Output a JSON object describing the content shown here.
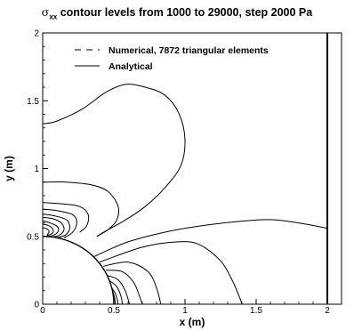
{
  "chart_data": {
    "type": "line",
    "title": {
      "symbol": "σ",
      "subscript": "xx",
      "text": " contour levels from 1000 to 29000, step 2000 Pa"
    },
    "xlabel": "x (m)",
    "ylabel": "y (m)",
    "xlim": [
      0,
      2.1
    ],
    "ylim": [
      0,
      2
    ],
    "x_ticks": [
      {
        "value": 0,
        "label": "0"
      },
      {
        "value": 0.5,
        "label": "0.5"
      },
      {
        "value": 1,
        "label": "1"
      },
      {
        "value": 1.5,
        "label": "1.5"
      },
      {
        "value": 2,
        "label": "2"
      }
    ],
    "y_ticks": [
      {
        "value": 0,
        "label": "0"
      },
      {
        "value": 0.5,
        "label": "0.5"
      },
      {
        "value": 1,
        "label": "1"
      },
      {
        "value": 1.5,
        "label": "1.5"
      },
      {
        "value": 2,
        "label": "2"
      }
    ],
    "grid": false,
    "legend": {
      "position": "top-left",
      "entries": [
        {
          "label": "Numerical, 7872 triangular elements",
          "style": "dashed"
        },
        {
          "label": "Analytical",
          "style": "solid"
        }
      ]
    },
    "series": [
      {
        "points": [
          [
            0,
            1.33
          ],
          [
            0.1,
            1.35
          ],
          [
            0.28,
            1.44
          ],
          [
            0.44,
            1.56
          ],
          [
            0.58,
            1.62
          ],
          [
            0.72,
            1.6
          ],
          [
            0.86,
            1.54
          ],
          [
            0.96,
            1.4
          ],
          [
            1.0,
            1.21
          ],
          [
            0.97,
            1.02
          ],
          [
            0.86,
            0.86
          ],
          [
            0.72,
            0.72
          ],
          [
            0.58,
            0.62
          ],
          [
            0.46,
            0.55
          ],
          [
            0.38,
            0.5
          ]
        ]
      },
      {
        "points": [
          [
            0,
            0.9
          ],
          [
            0.16,
            0.9
          ],
          [
            0.34,
            0.88
          ],
          [
            0.46,
            0.83
          ],
          [
            0.53,
            0.72
          ],
          [
            0.52,
            0.62
          ],
          [
            0.46,
            0.55
          ],
          [
            0.38,
            0.5
          ]
        ]
      },
      {
        "points": [
          [
            0,
            0.75
          ],
          [
            0.14,
            0.74
          ],
          [
            0.26,
            0.72
          ],
          [
            0.32,
            0.66
          ],
          [
            0.31,
            0.58
          ],
          [
            0.26,
            0.53
          ]
        ]
      },
      {
        "points": [
          [
            0,
            0.7
          ],
          [
            0.1,
            0.69
          ],
          [
            0.21,
            0.66
          ],
          [
            0.24,
            0.6
          ],
          [
            0.21,
            0.53
          ],
          [
            0.15,
            0.49
          ]
        ]
      },
      {
        "points": [
          [
            0,
            0.665
          ],
          [
            0.09,
            0.65
          ],
          [
            0.17,
            0.62
          ],
          [
            0.19,
            0.56
          ],
          [
            0.16,
            0.51
          ],
          [
            0.1,
            0.49
          ]
        ]
      },
      {
        "points": [
          [
            0,
            0.64
          ],
          [
            0.07,
            0.63
          ],
          [
            0.13,
            0.6
          ],
          [
            0.15,
            0.55
          ],
          [
            0.12,
            0.51
          ],
          [
            0.07,
            0.495
          ]
        ]
      },
      {
        "points": [
          [
            0,
            0.615
          ],
          [
            0.05,
            0.6
          ],
          [
            0.1,
            0.575
          ],
          [
            0.11,
            0.54
          ],
          [
            0.08,
            0.51
          ],
          [
            0.04,
            0.5
          ]
        ]
      },
      {
        "points": [
          [
            0,
            0.59
          ],
          [
            0.04,
            0.58
          ],
          [
            0.07,
            0.555
          ],
          [
            0.07,
            0.525
          ],
          [
            0.03,
            0.505
          ]
        ]
      },
      {
        "points": [
          [
            0,
            0.565
          ],
          [
            0.03,
            0.555
          ],
          [
            0.045,
            0.535
          ],
          [
            0.03,
            0.51
          ]
        ]
      },
      {
        "points": [
          [
            0.36,
            0.35
          ],
          [
            0.6,
            0.46
          ],
          [
            0.9,
            0.54
          ],
          [
            1.2,
            0.59
          ],
          [
            1.5,
            0.62
          ],
          [
            1.65,
            0.62
          ],
          [
            1.85,
            0.59
          ],
          [
            2.0,
            0.56
          ]
        ]
      },
      {
        "points": [
          [
            0.4,
            0.31
          ],
          [
            0.7,
            0.42
          ],
          [
            0.95,
            0.46
          ],
          [
            1.1,
            0.44
          ],
          [
            1.25,
            0.32
          ],
          [
            1.33,
            0.18
          ],
          [
            1.38,
            0.06
          ],
          [
            1.4,
            0
          ]
        ]
      },
      {
        "points": [
          [
            0.425,
            0.28
          ],
          [
            0.6,
            0.31
          ],
          [
            0.74,
            0.24
          ],
          [
            0.8,
            0.12
          ],
          [
            0.83,
            0
          ]
        ]
      },
      {
        "points": [
          [
            0.445,
            0.25
          ],
          [
            0.56,
            0.24
          ],
          [
            0.64,
            0.16
          ],
          [
            0.68,
            0.06
          ],
          [
            0.7,
            0
          ]
        ]
      },
      {
        "points": [
          [
            0.46,
            0.21
          ],
          [
            0.53,
            0.18
          ],
          [
            0.58,
            0.1
          ],
          [
            0.61,
            0
          ]
        ]
      },
      {
        "points": [
          [
            0.475,
            0.17
          ],
          [
            0.52,
            0.13
          ],
          [
            0.55,
            0.06
          ],
          [
            0.56,
            0
          ]
        ]
      },
      {
        "points": [
          [
            0.485,
            0.12
          ],
          [
            0.51,
            0.08
          ],
          [
            0.525,
            0.03
          ],
          [
            0.53,
            0
          ]
        ]
      },
      {
        "points": [
          [
            0.49,
            0.1
          ],
          [
            0.505,
            0.05
          ],
          [
            0.51,
            0
          ]
        ]
      }
    ]
  }
}
